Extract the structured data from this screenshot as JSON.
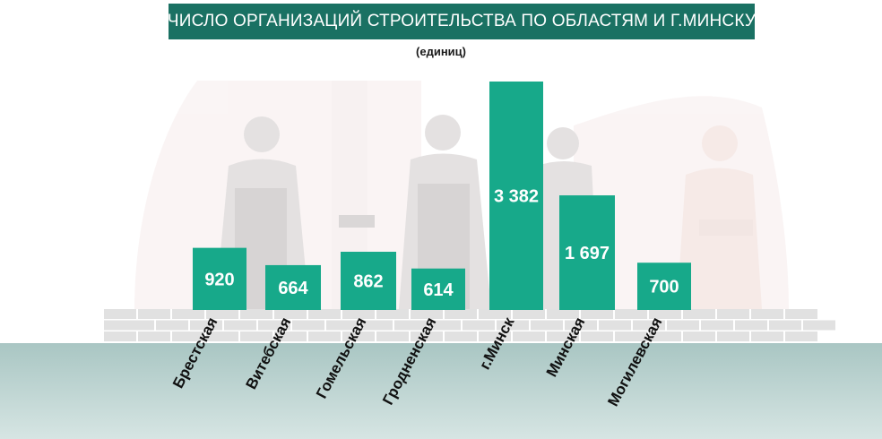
{
  "chart_data": {
    "type": "bar",
    "title": "ЧИСЛО ОРГАНИЗАЦИЙ СТРОИТЕЛЬСТВА ПО ОБЛАСТЯМ И Г.МИНСКУ",
    "subtitle": "(единиц)",
    "categories": [
      "Брестская",
      "Витебская",
      "Гомельская",
      "Гродненская",
      "г.Минск",
      "Минская",
      "Могилевская"
    ],
    "values": [
      920,
      664,
      862,
      614,
      3382,
      1697,
      700
    ],
    "value_labels": [
      "920",
      "664",
      "862",
      "614",
      "3 382",
      "1 697",
      "700"
    ],
    "ylim": [
      0,
      3600
    ],
    "grid": false,
    "legend": "none",
    "bar_color": "#17a98a",
    "title_bg_color": "#1a7163"
  }
}
